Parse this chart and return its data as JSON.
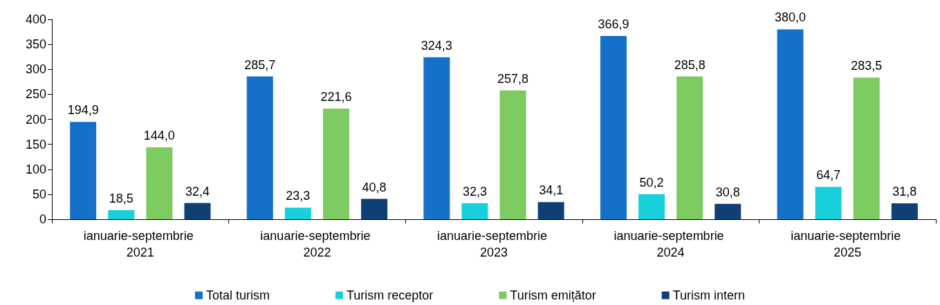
{
  "chart_data": {
    "type": "bar",
    "categories": [
      "ianuarie-septembrie 2021",
      "ianuarie-septembrie 2022",
      "ianuarie-septembrie 2023",
      "ianuarie-septembrie 2024",
      "ianuarie-septembrie 2025"
    ],
    "series": [
      {
        "name": "Total turism",
        "color": "#1570c8",
        "values": [
          194.9,
          285.7,
          324.3,
          366.9,
          380.0
        ],
        "value_labels": [
          "194,9",
          "285,7",
          "324,3",
          "366,9",
          "380,0"
        ]
      },
      {
        "name": "Turism receptor",
        "color": "#17d0dc",
        "values": [
          18.5,
          23.3,
          32.3,
          50.2,
          64.7
        ],
        "value_labels": [
          "18,5",
          "23,3",
          "32,3",
          "50,2",
          "64,7"
        ]
      },
      {
        "name": "Turism emițător",
        "color": "#7dcb60",
        "values": [
          144.0,
          221.6,
          257.8,
          285.8,
          283.5
        ],
        "value_labels": [
          "144,0",
          "221,6",
          "257,8",
          "285,8",
          "283,5"
        ]
      },
      {
        "name": "Turism intern",
        "color": "#0f3f73",
        "values": [
          32.4,
          40.8,
          34.1,
          30.8,
          31.8
        ],
        "value_labels": [
          "32,4",
          "40,8",
          "34,1",
          "30,8",
          "31,8"
        ]
      }
    ],
    "ylim": [
      0,
      400
    ],
    "yticks": [
      0,
      50,
      100,
      150,
      200,
      250,
      300,
      350,
      400
    ],
    "grid": false,
    "legend": "bottom"
  }
}
